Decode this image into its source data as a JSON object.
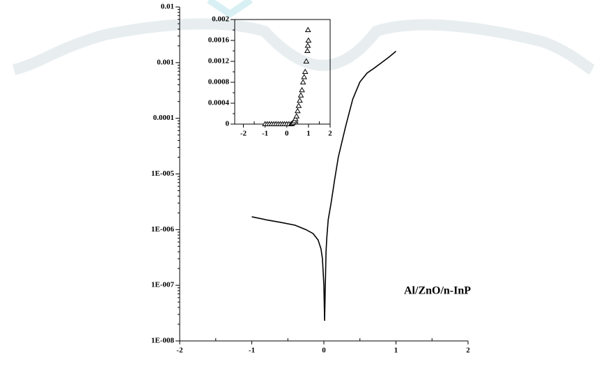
{
  "chart_data": [
    {
      "type": "line",
      "log_y": true,
      "color": "#000000",
      "x": [
        -1,
        -0.8,
        -0.6,
        -0.4,
        -0.25,
        -0.15,
        -0.08,
        -0.04,
        -0.02,
        0,
        0.01,
        0.02,
        0.03,
        0.04,
        0.06,
        0.1,
        0.15,
        0.2,
        0.3,
        0.4,
        0.5,
        0.6,
        0.7,
        0.8,
        0.9,
        1
      ],
      "values": [
        1.7e-06,
        1.5e-06,
        1.35e-06,
        1.2e-06,
        1e-06,
        8.5e-07,
        6.5e-07,
        4.5e-07,
        3e-07,
        1e-07,
        2.3e-08,
        1e-07,
        4e-07,
        7e-07,
        1.5e-06,
        3e-06,
        8e-06,
        2e-05,
        7e-05,
        0.00022,
        0.00045,
        0.00065,
        0.0008,
        0.001,
        0.00125,
        0.0016
      ],
      "xlim": [
        -2,
        2
      ],
      "xticks": [
        -2,
        -1,
        0,
        1,
        2
      ],
      "ylim": [
        1e-08,
        0.01
      ],
      "yticks": [
        {
          "value": 1e-08,
          "label": "1E-008"
        },
        {
          "value": 1e-07,
          "label": "1E-007"
        },
        {
          "value": 1e-06,
          "label": "1E-006"
        },
        {
          "value": 1e-05,
          "label": "1E-005"
        },
        0.0001,
        0.001,
        0.01
      ],
      "annotation": "Al/ZnO/n-InP"
    },
    {
      "type": "scatter",
      "marker": "triangle",
      "color": "#000000",
      "x": [
        -1,
        -0.9,
        -0.8,
        -0.7,
        -0.6,
        -0.5,
        -0.4,
        -0.3,
        -0.2,
        -0.1,
        0,
        0.1,
        0.2,
        0.25,
        0.3,
        0.35,
        0.4,
        0.45,
        0.5,
        0.55,
        0.6,
        0.65,
        0.7,
        0.75,
        0.8,
        0.85,
        0.9,
        0.95,
        0.97,
        1,
        0.98
      ],
      "values": [
        0,
        0,
        0,
        0,
        0,
        0,
        0,
        0,
        0,
        0,
        0,
        0,
        0,
        1e-05,
        3e-05,
        6e-05,
        0.0001,
        0.00015,
        0.00025,
        0.00035,
        0.00045,
        0.00055,
        0.00065,
        0.0008,
        0.0009,
        0.001,
        0.0012,
        0.0014,
        0.0015,
        0.0016,
        0.0018
      ],
      "xlim": [
        -2.4,
        2
      ],
      "xticks": [
        -2,
        -1,
        0,
        1,
        2
      ],
      "ylim": [
        0,
        0.002
      ],
      "yticks": [
        0,
        0.0004,
        0.0008,
        0.0012,
        0.0016,
        0.002
      ]
    }
  ]
}
